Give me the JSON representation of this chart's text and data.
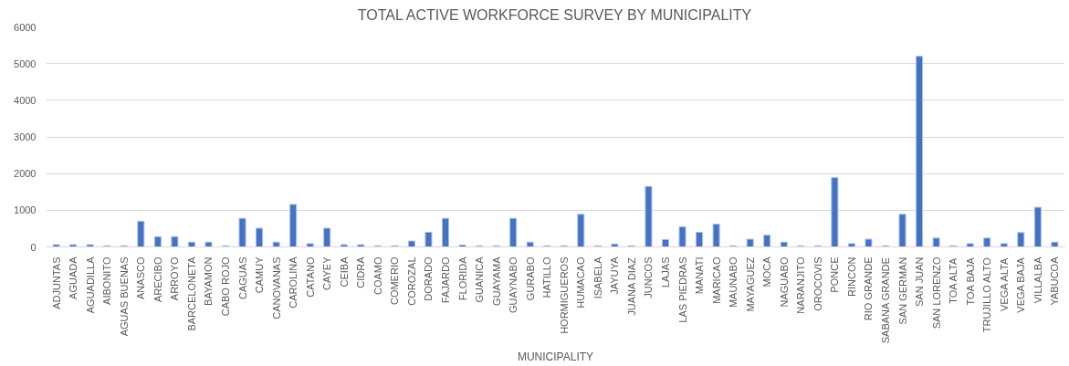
{
  "chart_data": {
    "type": "bar",
    "title": "TOTAL ACTIVE WORKFORCE SURVEY BY MUNICIPALITY",
    "xlabel": "MUNICIPALITY",
    "categories": [
      "ADJUNTAS",
      "AGUADA",
      "AGUADILLA",
      "AIBONITO",
      "AGUAS BUENAS",
      "ANASCO",
      "ARECIBO",
      "ARROYO",
      "BARCELONETA",
      "BAYAMON",
      "CABO ROJO",
      "CAGUAS",
      "CAMUY",
      "CANOVANAS",
      "CAROLINA",
      "CATANO",
      "CAYEY",
      "CEIBA",
      "CIDRA",
      "COAMO",
      "COMERIO",
      "COROZAL",
      "DORADO",
      "FAJARDO",
      "FLORIDA",
      "GUANICA",
      "GUAYAMA",
      "GUAYNABO",
      "GURABO",
      "HATILLO",
      "HORMIGUEROS",
      "HUMACAO",
      "ISABELA",
      "JAYUYA",
      "JUANA DIAZ",
      "JUNCOS",
      "LAJAS",
      "LAS PIEDRAS",
      "MANATI",
      "MARICAO",
      "MAUNABO",
      "MAYAGUEZ",
      "MOCA",
      "NAGUABO",
      "NARANJITO",
      "OROCOVIS",
      "PONCE",
      "RINCON",
      "RIO GRANDE",
      "SABANA GRANDE",
      "SAN GERMAN",
      "SAN JUAN",
      "SAN LORENZO",
      "TOA ALTA",
      "TOA BAJA",
      "TRUJILLO ALTO",
      "VEGA ALTA",
      "VEGA BAJA",
      "VILLALBA",
      "YABUCOA"
    ],
    "values": [
      60,
      60,
      60,
      30,
      30,
      700,
      280,
      280,
      130,
      130,
      30,
      780,
      510,
      130,
      1160,
      90,
      510,
      60,
      60,
      30,
      30,
      160,
      400,
      780,
      50,
      30,
      30,
      780,
      130,
      30,
      30,
      890,
      30,
      80,
      30,
      1650,
      200,
      550,
      400,
      620,
      30,
      210,
      320,
      130,
      30,
      30,
      1890,
      90,
      210,
      30,
      890,
      5200,
      240,
      30,
      90,
      240,
      90,
      390,
      1080,
      130
    ],
    "color": "#4472c4",
    "ylim": [
      0,
      6000
    ],
    "yticks": [
      0,
      1000,
      2000,
      3000,
      4000,
      5000,
      6000
    ],
    "grid": "y"
  }
}
